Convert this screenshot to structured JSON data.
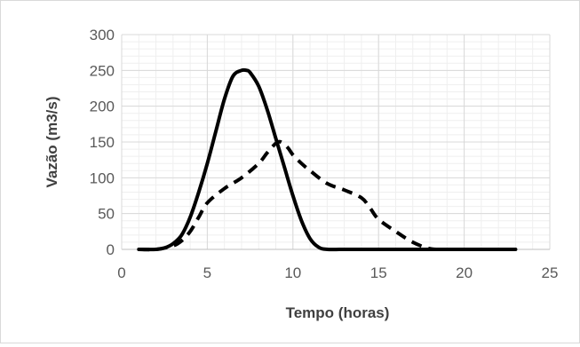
{
  "chart_data": {
    "type": "line",
    "title": "",
    "xlabel": "Tempo (horas)",
    "ylabel": "Vazão  (m3/s)",
    "xlim": [
      0,
      25
    ],
    "ylim": [
      0,
      300
    ],
    "xticks": [
      0,
      5,
      10,
      15,
      20,
      25
    ],
    "yticks": [
      0,
      50,
      100,
      150,
      200,
      250,
      300
    ],
    "x_tick_labels": [
      "0",
      "5",
      "10",
      "15",
      "20",
      "25"
    ],
    "y_tick_labels": [
      "0",
      "50",
      "100",
      "150",
      "200",
      "250",
      "300"
    ],
    "grid": true,
    "minor_grid": true,
    "legend": "none",
    "series": [
      {
        "style": "solid",
        "color": "#000000",
        "x": [
          1,
          2,
          2.5,
          3,
          3.5,
          4,
          4.5,
          5,
          5.5,
          6,
          6.5,
          7,
          7.3,
          7.5,
          8,
          8.5,
          9,
          9.5,
          10,
          10.5,
          11,
          11.5,
          12,
          13,
          15,
          18,
          20,
          23
        ],
        "y": [
          0,
          0,
          2,
          8,
          20,
          45,
          80,
          120,
          165,
          210,
          242,
          250,
          250,
          247,
          228,
          195,
          155,
          115,
          75,
          40,
          15,
          3,
          0,
          0,
          0,
          0,
          0,
          0
        ]
      },
      {
        "style": "dashed",
        "color": "#000000",
        "x": [
          1,
          2,
          3,
          3.5,
          4,
          4.5,
          5,
          6,
          7,
          8,
          8.5,
          9,
          9.3,
          9.7,
          10,
          10.5,
          11,
          12,
          13,
          14,
          14.5,
          15,
          16,
          17,
          18,
          19,
          20,
          23
        ],
        "y": [
          0,
          0,
          5,
          12,
          25,
          45,
          65,
          85,
          100,
          120,
          135,
          148,
          150,
          142,
          132,
          120,
          110,
          92,
          83,
          72,
          58,
          42,
          25,
          10,
          1,
          0,
          0,
          0
        ]
      }
    ]
  }
}
